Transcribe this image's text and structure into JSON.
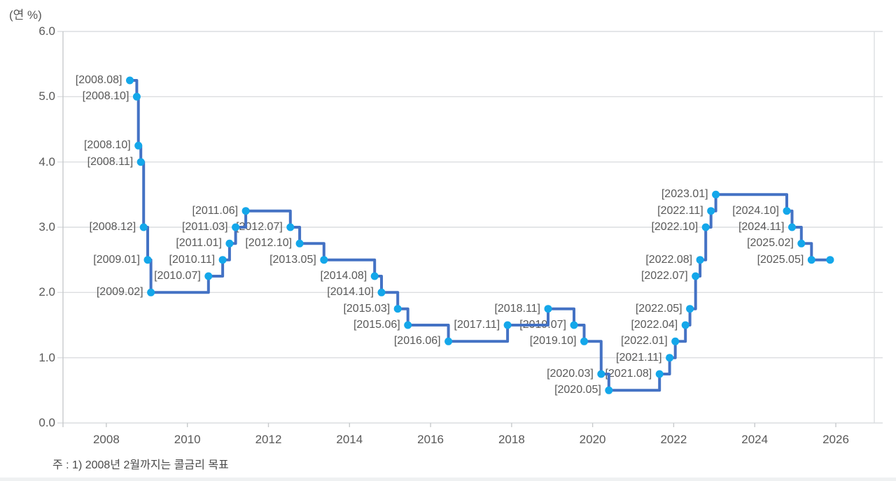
{
  "chart_data": {
    "type": "line",
    "subtype": "step-after",
    "title": "",
    "unit_label": "(연 %)",
    "footnote": "주 : 1) 2008년 2월까지는 콜금리 목표",
    "xlabel": "",
    "ylabel": "(연 %)",
    "xlim": [
      2006.93,
      2026.95
    ],
    "ylim": [
      0,
      6
    ],
    "grid": "horizontal",
    "legend": "none",
    "y_ticks": [
      {
        "value": 0,
        "label": "0.0"
      },
      {
        "value": 1,
        "label": "1.0"
      },
      {
        "value": 2,
        "label": "2.0"
      },
      {
        "value": 3,
        "label": "3.0"
      },
      {
        "value": 4,
        "label": "4.0"
      },
      {
        "value": 5,
        "label": "5.0"
      },
      {
        "value": 6,
        "label": "6.0"
      }
    ],
    "x_ticks": [
      {
        "value": 2008,
        "label": "2008"
      },
      {
        "value": 2010,
        "label": "2010"
      },
      {
        "value": 2012,
        "label": "2012"
      },
      {
        "value": 2014,
        "label": "2014"
      },
      {
        "value": 2016,
        "label": "2016"
      },
      {
        "value": 2018,
        "label": "2018"
      },
      {
        "value": 2020,
        "label": "2020"
      },
      {
        "value": 2022,
        "label": "2022"
      },
      {
        "value": 2024,
        "label": "2024"
      },
      {
        "value": 2026,
        "label": "2026"
      }
    ],
    "colors": {
      "line": "#4472C4",
      "marker": "#14A7EA",
      "point_label": "#595959",
      "grid": "#DCDEE0",
      "axis": "#C7CACC",
      "tick_label": "#595959"
    },
    "points": [
      {
        "label": "[2008.08]",
        "x": 2008.58,
        "value": 5.25
      },
      {
        "label": "[2008.10]",
        "x": 2008.75,
        "value": 5.0
      },
      {
        "label": "[2008.10]",
        "x": 2008.79,
        "value": 4.25
      },
      {
        "label": "[2008.11]",
        "x": 2008.85,
        "value": 4.0
      },
      {
        "label": "[2008.12]",
        "x": 2008.92,
        "value": 3.0
      },
      {
        "label": "[2009.01]",
        "x": 2009.02,
        "value": 2.5
      },
      {
        "label": "[2009.02]",
        "x": 2009.1,
        "value": 2.0
      },
      {
        "label": "[2010.07]",
        "x": 2010.52,
        "value": 2.25
      },
      {
        "label": "[2010.11]",
        "x": 2010.87,
        "value": 2.5
      },
      {
        "label": "[2011.01]",
        "x": 2011.04,
        "value": 2.75
      },
      {
        "label": "[2011.03]",
        "x": 2011.19,
        "value": 3.0
      },
      {
        "label": "[2011.06]",
        "x": 2011.44,
        "value": 3.25
      },
      {
        "label": "[2012.07]",
        "x": 2012.54,
        "value": 3.0
      },
      {
        "label": "[2012.10]",
        "x": 2012.77,
        "value": 2.75
      },
      {
        "label": "[2013.05]",
        "x": 2013.37,
        "value": 2.5
      },
      {
        "label": "[2014.08]",
        "x": 2014.62,
        "value": 2.25
      },
      {
        "label": "[2014.10]",
        "x": 2014.79,
        "value": 2.0
      },
      {
        "label": "[2015.03]",
        "x": 2015.19,
        "value": 1.75
      },
      {
        "label": "[2015.06]",
        "x": 2015.44,
        "value": 1.5
      },
      {
        "label": "[2016.06]",
        "x": 2016.44,
        "value": 1.25
      },
      {
        "label": "[2017.11]",
        "x": 2017.9,
        "value": 1.5
      },
      {
        "label": "[2018.11]",
        "x": 2018.9,
        "value": 1.75
      },
      {
        "label": "[2019.07]",
        "x": 2019.54,
        "value": 1.5
      },
      {
        "label": "[2019.10]",
        "x": 2019.79,
        "value": 1.25
      },
      {
        "label": "[2020.03]",
        "x": 2020.21,
        "value": 0.75
      },
      {
        "label": "[2020.05]",
        "x": 2020.4,
        "value": 0.5
      },
      {
        "label": "[2021.08]",
        "x": 2021.65,
        "value": 0.75
      },
      {
        "label": "[2021.11]",
        "x": 2021.9,
        "value": 1.0
      },
      {
        "label": "[2022.01]",
        "x": 2022.04,
        "value": 1.25
      },
      {
        "label": "[2022.04]",
        "x": 2022.29,
        "value": 1.5
      },
      {
        "label": "[2022.05]",
        "x": 2022.4,
        "value": 1.75
      },
      {
        "label": "[2022.07]",
        "x": 2022.54,
        "value": 2.25
      },
      {
        "label": "[2022.08]",
        "x": 2022.65,
        "value": 2.5
      },
      {
        "label": "[2022.10]",
        "x": 2022.79,
        "value": 3.0
      },
      {
        "label": "[2022.11]",
        "x": 2022.92,
        "value": 3.25
      },
      {
        "label": "[2023.01]",
        "x": 2023.04,
        "value": 3.5
      },
      {
        "label": "[2024.10]",
        "x": 2024.79,
        "value": 3.25
      },
      {
        "label": "[2024.11]",
        "x": 2024.92,
        "value": 3.0
      },
      {
        "label": "[2025.02]",
        "x": 2025.15,
        "value": 2.75
      },
      {
        "label": "[2025.05]",
        "x": 2025.4,
        "value": 2.5
      },
      {
        "label": null,
        "x": 2025.86,
        "value": 2.5
      }
    ]
  }
}
